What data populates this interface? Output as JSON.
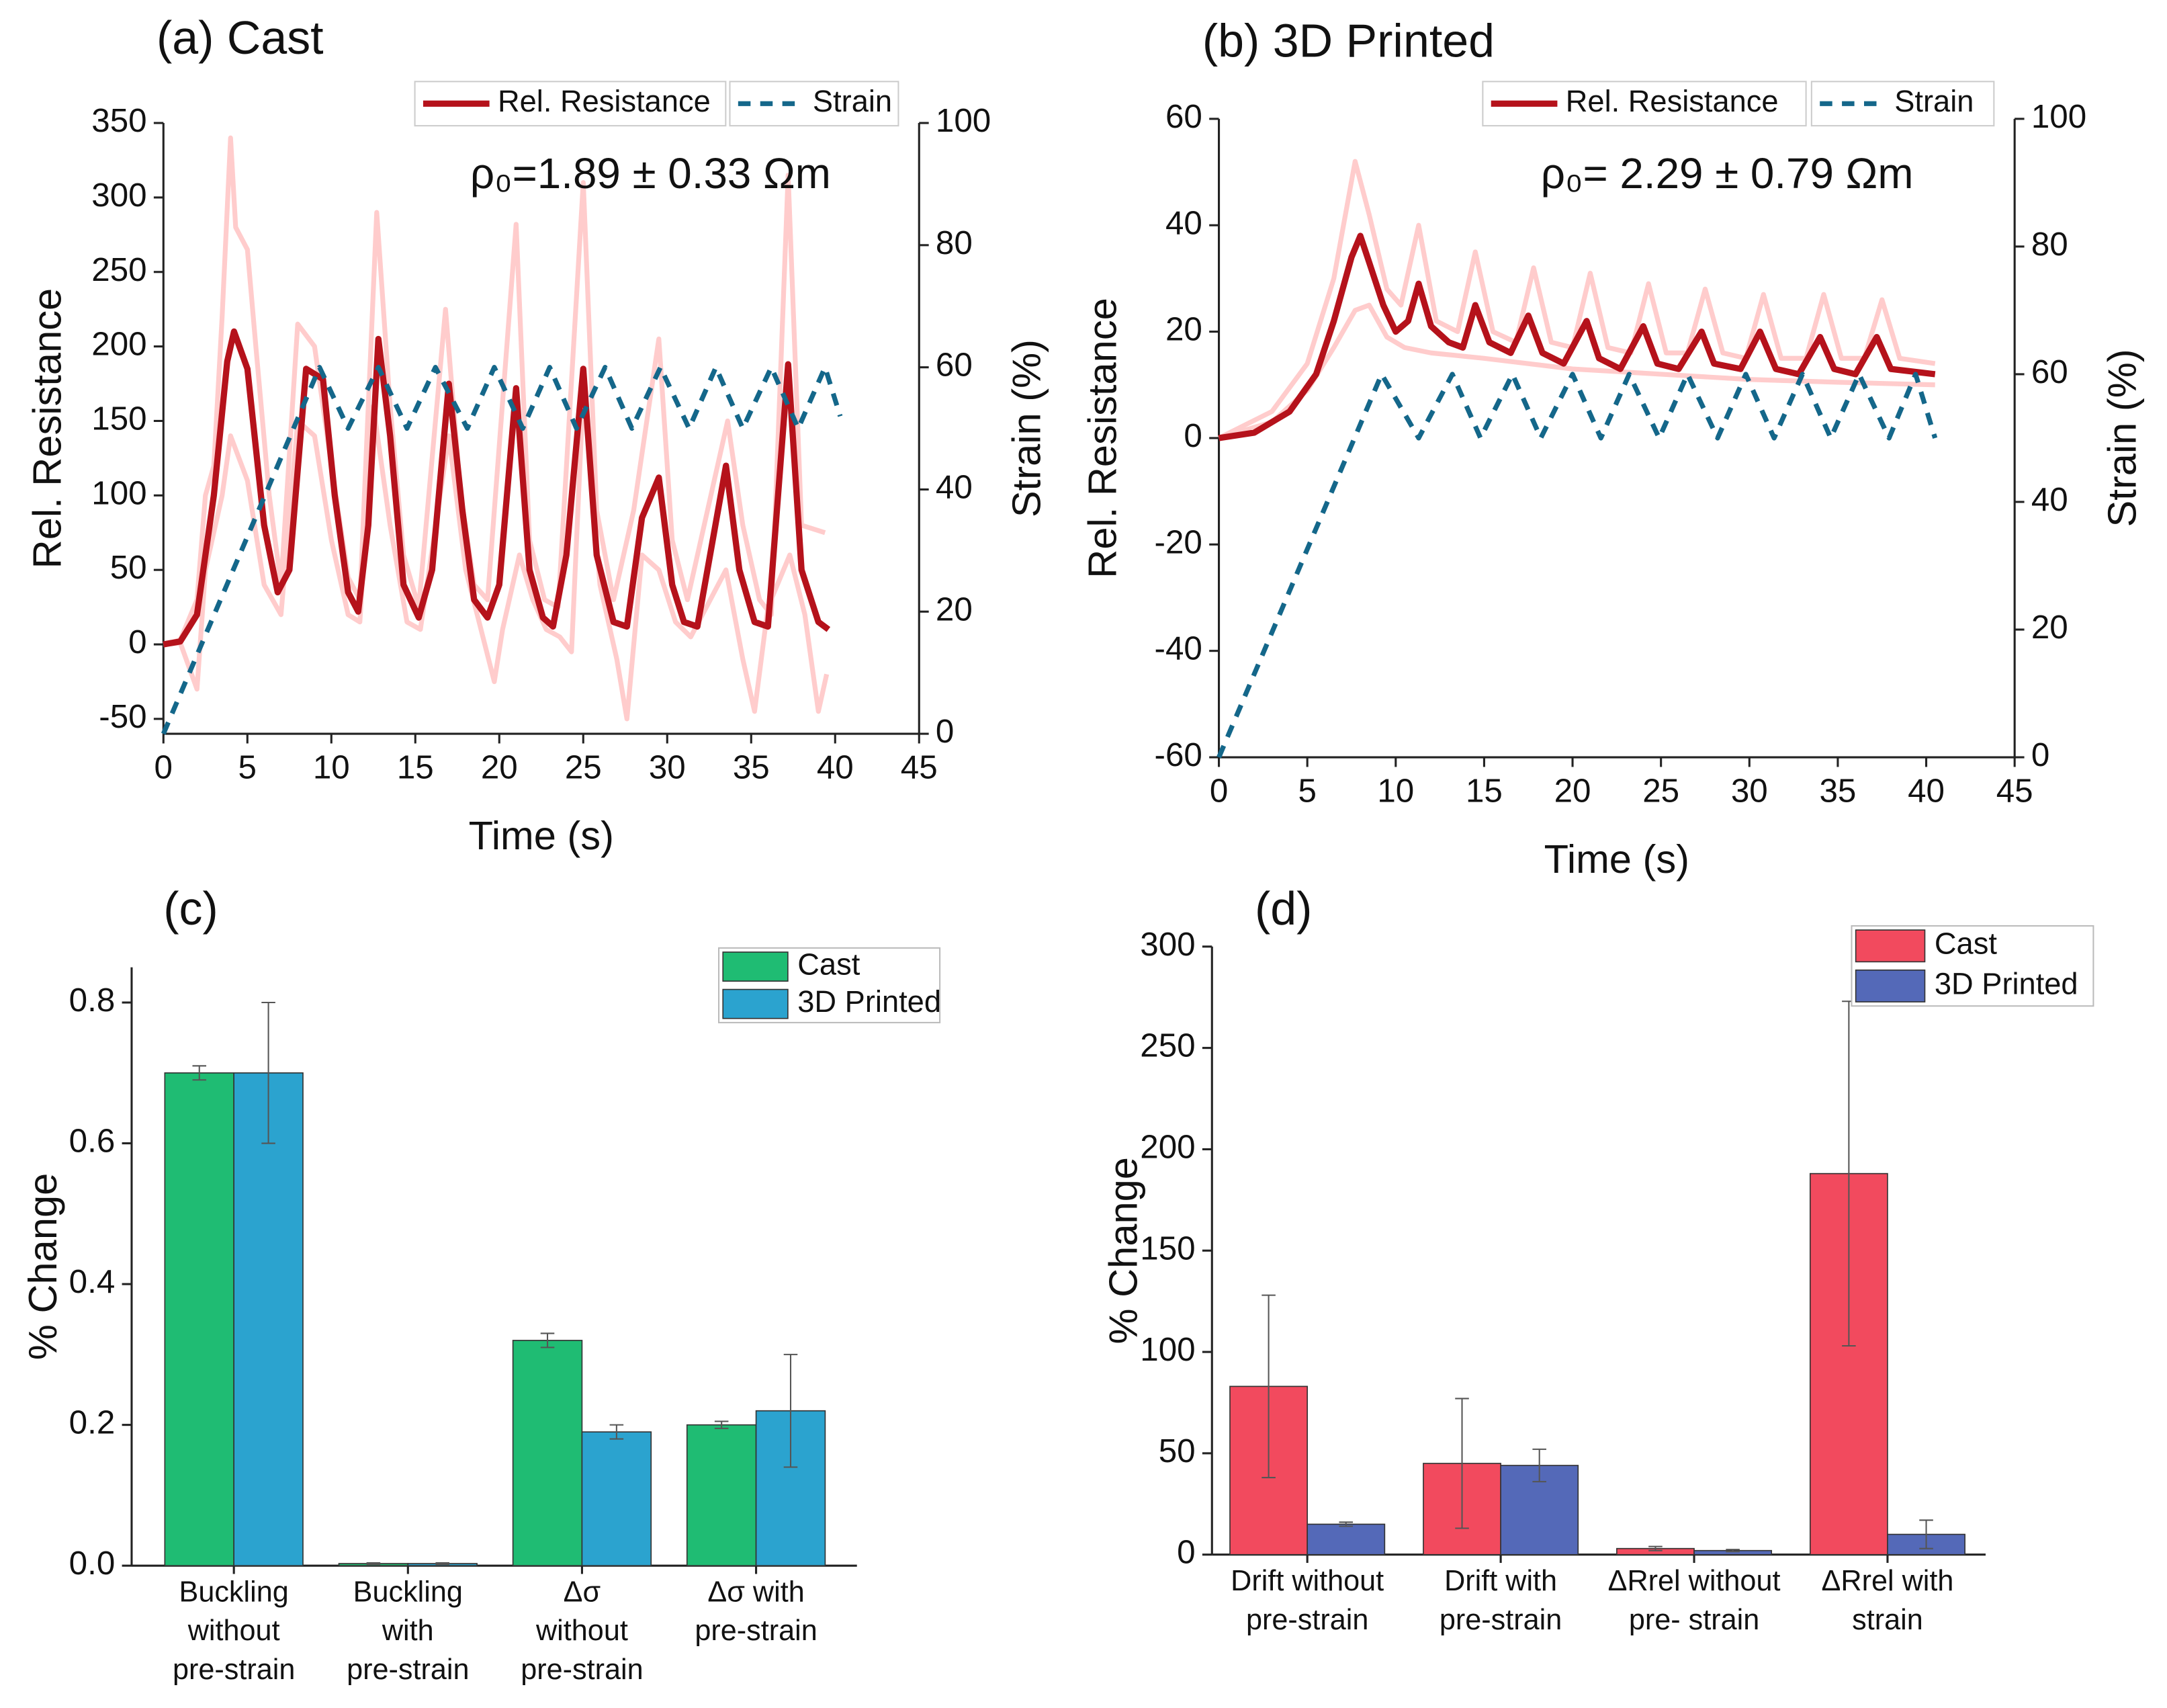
{
  "chart_data": [
    {
      "type": "line",
      "title": "(a) Cast",
      "xlabel": "Time (s)",
      "ylabel": "Rel. Resistance",
      "y2label": "Strain (%)",
      "annotation": "ρ₀=1.89 ± 0.33 Ωm",
      "xlim": [
        0,
        45
      ],
      "xticks": [
        0,
        5,
        10,
        15,
        20,
        25,
        30,
        35,
        40,
        45
      ],
      "ylim": [
        -60,
        350
      ],
      "yticks": [
        -50,
        0,
        50,
        100,
        150,
        200,
        250,
        300,
        350
      ],
      "y2lim": [
        0,
        100
      ],
      "y2ticks": [
        0,
        20,
        40,
        60,
        80,
        100
      ],
      "series": [
        {
          "color": "#ffcccc",
          "x": [
            0,
            1,
            2,
            2.5,
            3,
            3.5,
            4,
            4.3,
            5,
            5.5,
            6.3,
            7,
            8,
            9,
            10,
            11,
            11.7,
            12.7,
            13.5,
            14.3,
            15.2,
            16.8,
            17.7,
            18.5,
            19.3,
            21,
            21.8,
            22.7,
            23.5,
            25,
            25.8,
            26.8,
            28,
            29.5,
            30.3,
            31.2,
            33.6,
            34.5,
            35.5,
            36.2,
            37.2,
            38,
            39.4
          ],
          "values": [
            0,
            3,
            30,
            100,
            120,
            220,
            340,
            280,
            265,
            200,
            100,
            40,
            215,
            200,
            120,
            45,
            30,
            290,
            160,
            60,
            25,
            225,
            100,
            40,
            30,
            282,
            70,
            30,
            25,
            310,
            90,
            30,
            90,
            205,
            70,
            30,
            150,
            80,
            30,
            20,
            315,
            80,
            75
          ]
        },
        {
          "color": "#ffcccc",
          "x": [
            0,
            1,
            2,
            2.5,
            3.5,
            4,
            5,
            6,
            7,
            8,
            9,
            10,
            11,
            11.7,
            12.5,
            13.5,
            14.5,
            15.3,
            17,
            18,
            18.8,
            19.7,
            20.2,
            21.2,
            22,
            22.8,
            23.6,
            24.3,
            25,
            26,
            27,
            27.6,
            28.5,
            29.5,
            30.5,
            31.4,
            33.5,
            34.5,
            35.2,
            36,
            37.3,
            38.2,
            39,
            39.5
          ],
          "values": [
            0,
            1,
            -30,
            50,
            100,
            140,
            110,
            40,
            20,
            150,
            140,
            70,
            20,
            15,
            160,
            80,
            15,
            10,
            140,
            50,
            15,
            -25,
            10,
            60,
            30,
            10,
            5,
            -5,
            170,
            40,
            -10,
            -50,
            60,
            50,
            15,
            5,
            50,
            -10,
            -45,
            25,
            60,
            20,
            -45,
            -20
          ]
        },
        {
          "name": "Rel. Resistance",
          "color": "#b5121b",
          "x": [
            0,
            1,
            2,
            3,
            3.8,
            4.2,
            5,
            6,
            6.8,
            7.5,
            8.5,
            9.5,
            10.2,
            11,
            11.6,
            12.2,
            12.8,
            13.5,
            14.3,
            15.2,
            16,
            17,
            17.8,
            18.5,
            19.3,
            20,
            21,
            21.8,
            22.6,
            23.2,
            24,
            25,
            25.8,
            26.8,
            27.6,
            28.5,
            29.5,
            30.3,
            31,
            31.8,
            33.5,
            34.3,
            35.2,
            36,
            37.2,
            38,
            39,
            39.6
          ],
          "values": [
            0,
            2,
            20,
            100,
            190,
            210,
            185,
            80,
            35,
            50,
            185,
            178,
            100,
            35,
            22,
            80,
            205,
            140,
            40,
            18,
            50,
            175,
            90,
            30,
            18,
            40,
            172,
            50,
            18,
            12,
            60,
            185,
            60,
            15,
            12,
            85,
            112,
            40,
            15,
            12,
            120,
            50,
            15,
            12,
            188,
            50,
            15,
            10
          ]
        },
        {
          "name": "Strain",
          "color": "#14678a",
          "dash": true,
          "axis": "y2",
          "x": [
            0,
            9.3,
            11,
            12.8,
            14.5,
            16.2,
            18.1,
            19.7,
            21.4,
            23,
            24.6,
            26.3,
            27.9,
            29.6,
            31.3,
            32.9,
            34.5,
            36.2,
            37.8,
            39.4,
            40.3
          ],
          "values": [
            0,
            60,
            50,
            60,
            50,
            60,
            50,
            60,
            50,
            60,
            50,
            60,
            50,
            60,
            50,
            60,
            50,
            60,
            50,
            60,
            52
          ]
        }
      ]
    },
    {
      "type": "line",
      "title": "(b) 3D Printed",
      "xlabel": "Time (s)",
      "ylabel": "Rel. Resistance",
      "y2label": "Strain (%)",
      "annotation": "ρ₀= 2.29 ± 0.79 Ωm",
      "xlim": [
        0,
        45
      ],
      "xticks": [
        0,
        5,
        10,
        15,
        20,
        25,
        30,
        35,
        40,
        45
      ],
      "ylim": [
        -60,
        60
      ],
      "yticks": [
        -60,
        -40,
        -20,
        0,
        20,
        40,
        60
      ],
      "y2lim": [
        0,
        100
      ],
      "y2ticks": [
        0,
        20,
        40,
        60,
        80,
        100
      ],
      "series": [
        {
          "color": "#ffcccc",
          "x": [
            0,
            3,
            5,
            6.5,
            7.7,
            8.5,
            9.5,
            10.3,
            11.3,
            12.3,
            13.5,
            14.5,
            15.5,
            16.8,
            17.8,
            18.8,
            20,
            21,
            22,
            23.3,
            24.3,
            25.3,
            26.5,
            27.5,
            28.5,
            29.8,
            30.8,
            31.8,
            33.2,
            34.2,
            35.2,
            36.5,
            37.5,
            38.5,
            40.5
          ],
          "values": [
            0,
            5,
            14,
            30,
            52,
            42,
            28,
            25,
            40,
            22,
            20,
            35,
            20,
            18,
            32,
            18,
            17,
            31,
            17,
            16,
            29,
            16,
            16,
            28,
            16,
            15,
            27,
            15,
            15,
            27,
            15,
            15,
            26,
            15,
            14
          ]
        },
        {
          "color": "#ffcccc",
          "x": [
            0,
            3,
            5,
            6.5,
            7.7,
            8.5,
            9.5,
            10.5,
            12,
            15,
            20,
            25,
            30,
            35,
            40.5
          ],
          "values": [
            0,
            3,
            9,
            17,
            24,
            25,
            19,
            17,
            16,
            15,
            13,
            12,
            11,
            10.5,
            10
          ]
        },
        {
          "name": "Rel. Resistance",
          "color": "#b5121b",
          "x": [
            0,
            2,
            4,
            5.5,
            6.5,
            7.5,
            8,
            8.5,
            9.3,
            10,
            10.7,
            11.3,
            12,
            13,
            13.8,
            14.5,
            15.3,
            16.5,
            17.5,
            18.3,
            19.5,
            20.8,
            21.5,
            22.7,
            24,
            24.8,
            26,
            27.3,
            28,
            29.5,
            30.6,
            31.5,
            32.8,
            34,
            34.8,
            36,
            37.2,
            38,
            40.5
          ],
          "values": [
            0,
            1,
            5,
            12,
            22,
            34,
            38,
            33,
            25,
            20,
            22,
            29,
            21,
            18,
            17,
            25,
            18,
            16,
            23,
            16,
            14,
            22,
            15,
            13,
            21,
            14,
            13,
            20,
            14,
            13,
            20,
            13,
            12,
            19,
            13,
            12,
            19,
            13,
            12
          ]
        },
        {
          "name": "Strain",
          "color": "#14678a",
          "dash": true,
          "axis": "y2",
          "x": [
            0,
            9.2,
            11.3,
            13.2,
            14.8,
            16.6,
            18.2,
            20,
            21.6,
            23.2,
            24.9,
            26.5,
            28.2,
            29.8,
            31.4,
            33,
            34.6,
            36.2,
            37.9,
            39.4,
            40.5
          ],
          "values": [
            0,
            60,
            50,
            60,
            50,
            60,
            50,
            60,
            50,
            60,
            50,
            60,
            50,
            60,
            50,
            60,
            50,
            60,
            50,
            60,
            50
          ]
        }
      ]
    },
    {
      "type": "bar",
      "title": "(c)",
      "ylabel": "% Change",
      "categories": [
        "Buckling\nwithout\npre-strain",
        "Buckling\nwith\npre-strain",
        "Δσ\nwithout\npre-strain",
        "Δσ  with\npre-strain"
      ],
      "ylim": [
        0,
        0.85
      ],
      "yticks": [
        {
          "value": 0,
          "label": "0.0"
        },
        0.2,
        0.4,
        0.6,
        0.8
      ],
      "series": [
        {
          "name": "Cast",
          "color": "#1fbc73",
          "values": [
            0.7,
            0.003,
            0.32,
            0.2
          ],
          "errors": [
            0.01,
            0.001,
            0.01,
            0.005
          ]
        },
        {
          "name": "3D Printed",
          "color": "#2ba3cf",
          "values": [
            0.7,
            0.003,
            0.19,
            0.22
          ],
          "errors": [
            0.1,
            0.001,
            0.01,
            0.08
          ]
        }
      ]
    },
    {
      "type": "bar",
      "title": "(d)",
      "ylabel": "% Change",
      "categories": [
        "Drift without\npre-strain",
        "Drift with\npre-strain",
        "ΔRrel without\npre- strain",
        "ΔRrel with\nstrain"
      ],
      "ylim": [
        0,
        300
      ],
      "yticks": [
        0,
        50,
        100,
        150,
        200,
        250,
        300
      ],
      "series": [
        {
          "name": "Cast",
          "color": "#f24a5e",
          "values": [
            83,
            45,
            3,
            188
          ],
          "errors": [
            45,
            32,
            1,
            85
          ]
        },
        {
          "name": "3D Printed",
          "color": "#5469b8",
          "values": [
            15,
            44,
            2,
            10
          ],
          "errors": [
            1,
            8,
            0.5,
            7
          ]
        }
      ]
    }
  ]
}
